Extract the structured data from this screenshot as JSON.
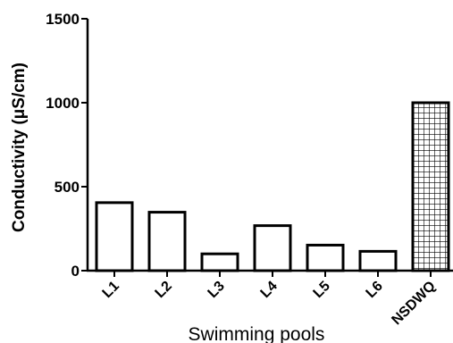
{
  "chart_data": {
    "type": "bar",
    "categories": [
      "L1",
      "L2",
      "L3",
      "L4",
      "L5",
      "L6",
      "NSDWQ"
    ],
    "values": [
      405,
      348,
      100,
      268,
      152,
      115,
      1000
    ],
    "xlabel": "Swimming pools",
    "ylabel": "Conductivity (μS/cm)",
    "ylim": [
      0,
      1500
    ],
    "yticks": [
      "0",
      "500",
      "1000",
      "1500"
    ],
    "grid": false,
    "legend": "none",
    "bar_fill": "#ffffff",
    "bar_stroke": "#000000",
    "hatched_category": "NSDWQ",
    "hatch_pattern": "grid"
  }
}
